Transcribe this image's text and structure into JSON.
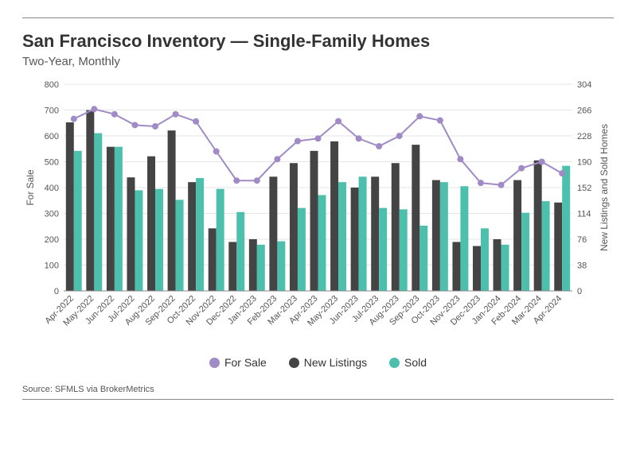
{
  "title": "San Francisco Inventory — Single-Family Homes",
  "subtitle": "Two-Year, Monthly",
  "source_label": "Source:  SFMLS via BrokerMetrics",
  "legend": {
    "for_sale": "For Sale",
    "new_listings": "New Listings",
    "sold": "Sold"
  },
  "colors": {
    "for_sale": "#a18bc7",
    "new_listings": "#444444",
    "sold": "#4cc0ad",
    "grid": "#e6e6e6",
    "axis_text": "#555555",
    "title": "#333333",
    "background": "#ffffff"
  },
  "chart": {
    "type": "grouped-bar-with-line",
    "left_axis": {
      "label": "For Sale",
      "min": 0,
      "max": 800,
      "step": 100
    },
    "right_axis": {
      "label": "New Listings and Sold Homes",
      "min": 0,
      "max": 304,
      "step": 38
    },
    "bar_group_width_ratio": 0.78,
    "marker_radius": 4,
    "line_width": 2,
    "font_size_tick": 11,
    "font_size_axis_label": 12,
    "categories": [
      "Apr-2022",
      "May-2022",
      "Jun-2022",
      "Jul-2022",
      "Aug-2022",
      "Sep-2022",
      "Oct-2022",
      "Nov-2022",
      "Dec-2022",
      "Jan-2023",
      "Feb-2023",
      "Mar-2023",
      "Apr-2023",
      "May-2023",
      "Jun-2023",
      "Jul-2023",
      "Aug-2023",
      "Sep-2023",
      "Oct-2023",
      "Nov-2023",
      "Dec-2023",
      "Jan-2024",
      "Feb-2024",
      "Mar-2024",
      "Apr-2024"
    ],
    "for_sale": [
      666,
      704,
      684,
      642,
      637,
      684,
      656,
      540,
      427,
      427,
      510,
      580,
      590,
      657,
      590,
      560,
      600,
      676,
      660,
      510,
      418,
      410,
      475,
      500,
      455
    ],
    "new_listings": [
      248,
      266,
      212,
      167,
      198,
      236,
      160,
      92,
      72,
      76,
      168,
      188,
      206,
      220,
      152,
      168,
      188,
      215,
      163,
      72,
      66,
      76,
      163,
      192,
      130
    ],
    "sold": [
      206,
      232,
      212,
      148,
      150,
      134,
      166,
      150,
      116,
      68,
      73,
      122,
      141,
      160,
      168,
      122,
      120,
      96,
      160,
      154,
      92,
      68,
      115,
      132,
      184
    ]
  }
}
